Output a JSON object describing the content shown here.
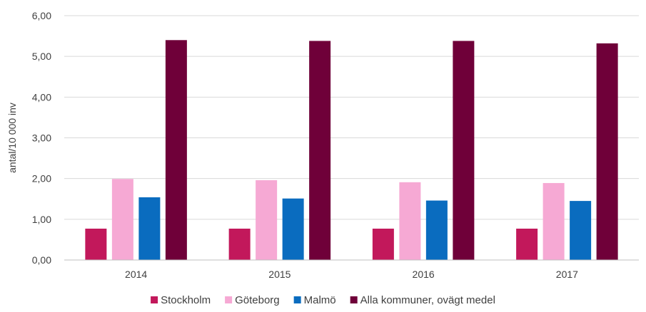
{
  "chart_data": {
    "type": "bar",
    "title": "",
    "xlabel": "",
    "ylabel": "antal/10 000 inv",
    "ylim": [
      0,
      6
    ],
    "yticks": [
      "0,00",
      "1,00",
      "2,00",
      "3,00",
      "4,00",
      "5,00",
      "6,00"
    ],
    "categories": [
      "2014",
      "2015",
      "2016",
      "2017"
    ],
    "series": [
      {
        "name": "Stockholm",
        "color": "#c2185b",
        "values": [
          0.77,
          0.77,
          0.77,
          0.77
        ]
      },
      {
        "name": "Göteborg",
        "color": "#f6a9d4",
        "values": [
          1.99,
          1.96,
          1.91,
          1.89
        ]
      },
      {
        "name": "Malmö",
        "color": "#0a6cbf",
        "values": [
          1.54,
          1.51,
          1.46,
          1.45
        ]
      },
      {
        "name": "Alla kommuner, ovägt medel",
        "color": "#6f0039",
        "values": [
          5.4,
          5.38,
          5.38,
          5.32
        ]
      }
    ],
    "grid": true,
    "legend_position": "bottom"
  }
}
